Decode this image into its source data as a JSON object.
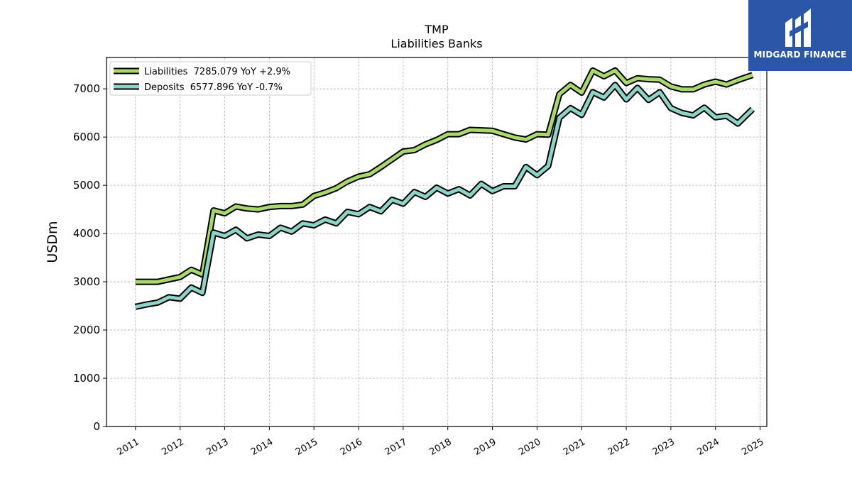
{
  "chart_data": {
    "type": "line",
    "title": "TMP",
    "subtitle": "Liabilities Banks",
    "xlabel": "",
    "ylabel": "USDm",
    "xlim": [
      2010.35,
      2025.15
    ],
    "ylim": [
      0,
      7650
    ],
    "x_ticks": [
      2011,
      2012,
      2013,
      2014,
      2015,
      2016,
      2017,
      2018,
      2019,
      2020,
      2021,
      2022,
      2023,
      2024,
      2025
    ],
    "x_tick_labels": [
      "2011",
      "2012",
      "2013",
      "2014",
      "2015",
      "2016",
      "2017",
      "2018",
      "2019",
      "2020",
      "2021",
      "2022",
      "2023",
      "2024",
      "2025"
    ],
    "y_ticks": [
      0,
      1000,
      2000,
      3000,
      4000,
      5000,
      6000,
      7000
    ],
    "y_tick_labels": [
      "0",
      "1000",
      "2000",
      "3000",
      "4000",
      "5000",
      "6000",
      "7000"
    ],
    "grid": true,
    "legend_position": "top-left",
    "series": [
      {
        "name": "Liabilities",
        "legend_label": "Liabilities  7285.079 YoY +2.9%",
        "color": "#a9d86e",
        "x": [
          2011.0,
          2011.25,
          2011.5,
          2011.75,
          2012.0,
          2012.25,
          2012.5,
          2012.75,
          2013.0,
          2013.25,
          2013.5,
          2013.75,
          2014.0,
          2014.25,
          2014.5,
          2014.75,
          2015.0,
          2015.25,
          2015.5,
          2015.75,
          2016.0,
          2016.25,
          2016.5,
          2016.75,
          2017.0,
          2017.25,
          2017.5,
          2017.75,
          2018.0,
          2018.25,
          2018.5,
          2018.75,
          2019.0,
          2019.25,
          2019.5,
          2019.75,
          2020.0,
          2020.25,
          2020.5,
          2020.75,
          2021.0,
          2021.25,
          2021.5,
          2021.75,
          2022.0,
          2022.25,
          2022.5,
          2022.75,
          2023.0,
          2023.25,
          2023.5,
          2023.75,
          2024.0,
          2024.25,
          2024.5,
          2024.83
        ],
        "values": [
          3000,
          3000,
          3000,
          3050,
          3100,
          3250,
          3150,
          4480,
          4420,
          4560,
          4520,
          4500,
          4550,
          4570,
          4570,
          4600,
          4780,
          4850,
          4940,
          5080,
          5180,
          5230,
          5380,
          5540,
          5700,
          5730,
          5850,
          5940,
          6060,
          6060,
          6150,
          6140,
          6130,
          6060,
          5990,
          5950,
          6060,
          6050,
          6890,
          7080,
          6920,
          7380,
          7260,
          7380,
          7120,
          7220,
          7200,
          7190,
          7050,
          6990,
          6990,
          7090,
          7150,
          7090,
          7180,
          7285.079
        ]
      },
      {
        "name": "Deposits",
        "legend_label": "Deposits  6577.896 YoY -0.7%",
        "color": "#8fd3c6",
        "x": [
          2011.0,
          2011.25,
          2011.5,
          2011.75,
          2012.0,
          2012.25,
          2012.5,
          2012.75,
          2013.0,
          2013.25,
          2013.5,
          2013.75,
          2014.0,
          2014.25,
          2014.5,
          2014.75,
          2015.0,
          2015.25,
          2015.5,
          2015.75,
          2016.0,
          2016.25,
          2016.5,
          2016.75,
          2017.0,
          2017.25,
          2017.5,
          2017.75,
          2018.0,
          2018.25,
          2018.5,
          2018.75,
          2019.0,
          2019.25,
          2019.5,
          2019.75,
          2020.0,
          2020.25,
          2020.5,
          2020.75,
          2021.0,
          2021.25,
          2021.5,
          2021.75,
          2022.0,
          2022.25,
          2022.5,
          2022.75,
          2023.0,
          2023.25,
          2023.5,
          2023.75,
          2024.0,
          2024.25,
          2024.5,
          2024.83
        ],
        "values": [
          2480,
          2530,
          2570,
          2680,
          2650,
          2880,
          2770,
          4020,
          3950,
          4080,
          3900,
          3980,
          3950,
          4120,
          4040,
          4210,
          4170,
          4290,
          4210,
          4450,
          4400,
          4550,
          4460,
          4700,
          4620,
          4860,
          4760,
          4950,
          4830,
          4920,
          4790,
          5030,
          4880,
          4980,
          4980,
          5380,
          5210,
          5400,
          6400,
          6600,
          6460,
          6930,
          6820,
          7080,
          6780,
          7020,
          6770,
          6930,
          6600,
          6500,
          6450,
          6610,
          6410,
          6440,
          6280,
          6577.896
        ]
      }
    ]
  },
  "logo": {
    "text": "MIDGARD FINANCE"
  }
}
